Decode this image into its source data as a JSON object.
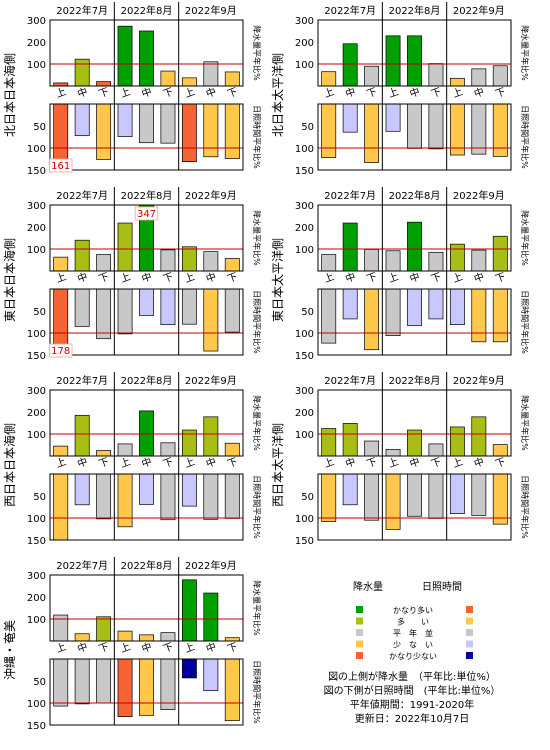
{
  "months": [
    "2022年7月",
    "2022年8月",
    "2022年9月"
  ],
  "dekads": [
    "上",
    "中",
    "下"
  ],
  "precip_side_label": "降水量平年比%",
  "sun_side_label": "日照時間平年比%",
  "precip_ticks": [
    "100",
    "200",
    "300"
  ],
  "sun_ticks": [
    "50",
    "100",
    "150"
  ],
  "colors": {
    "very_high": "#00A000",
    "high": "#A8BE14",
    "normal": "#C8C8C8",
    "low": "#FFC84B",
    "very_low": "#F56432",
    "sun_low": "#C8C8FF",
    "sun_very_low": "#0000A0",
    "normal_line": "#C00000"
  },
  "legend": {
    "precip_title": "降水量",
    "sun_title": "日照時間",
    "levels": [
      "かなり多い",
      "多　　い",
      "平　年　並",
      "少　な　い",
      "かなり少ない"
    ]
  },
  "notes": {
    "line1": "図の上側が降水量　（平年比:単位%）",
    "line2": "図の下側が日照時間　(平年比:単位%）",
    "line3": "平年値期間：1991-2020年",
    "line4": "更新日：2022年10月7日"
  },
  "chart_data": [
    {
      "type": "bar",
      "region": "北日本日本海側",
      "categories": [
        "7月上",
        "7月中",
        "7月下",
        "8月上",
        "8月中",
        "8月下",
        "9月上",
        "9月中",
        "9月下"
      ],
      "precipitation": [
        14,
        122,
        20,
        272,
        250,
        68,
        37,
        110,
        64
      ],
      "precipitation_class": [
        "very_low",
        "high",
        "very_low",
        "very_high",
        "very_high",
        "low",
        "low",
        "normal",
        "low"
      ],
      "sunshine": [
        161,
        72,
        126,
        74,
        88,
        89,
        131,
        120,
        124
      ],
      "sunshine_class": [
        "very_low",
        "sun_low",
        "low",
        "sun_low",
        "normal",
        "normal",
        "very_low",
        "low",
        "low"
      ],
      "precip_ylim": [
        0,
        300
      ],
      "sun_ylim": [
        150,
        0
      ],
      "labels": {
        "sun_0": "161"
      }
    },
    {
      "type": "bar",
      "region": "北日本太平洋側",
      "categories": [
        "7月上",
        "7月中",
        "7月下",
        "8月上",
        "8月中",
        "8月下",
        "9月上",
        "9月中",
        "9月下"
      ],
      "precipitation": [
        65,
        192,
        90,
        228,
        228,
        102,
        35,
        78,
        92
      ],
      "precipitation_class": [
        "low",
        "very_high",
        "normal",
        "very_high",
        "very_high",
        "normal",
        "low",
        "normal",
        "normal"
      ],
      "sunshine": [
        122,
        64,
        133,
        62,
        101,
        102,
        116,
        114,
        119
      ],
      "sunshine_class": [
        "low",
        "sun_low",
        "low",
        "sun_low",
        "normal",
        "normal",
        "low",
        "normal",
        "low"
      ],
      "precip_ylim": [
        0,
        300
      ],
      "sun_ylim": [
        150,
        0
      ]
    },
    {
      "type": "bar",
      "region": "東日本日本海側",
      "categories": [
        "7月上",
        "7月中",
        "7月下",
        "8月上",
        "8月中",
        "8月下",
        "9月上",
        "9月中",
        "9月下"
      ],
      "precipitation": [
        63,
        140,
        75,
        218,
        347,
        96,
        110,
        88,
        57
      ],
      "precipitation_class": [
        "low",
        "high",
        "normal",
        "high",
        "very_high",
        "normal",
        "high",
        "normal",
        "low"
      ],
      "sunshine": [
        178,
        85,
        113,
        102,
        60,
        81,
        80,
        141,
        98
      ],
      "sunshine_class": [
        "very_low",
        "normal",
        "normal",
        "normal",
        "sun_low",
        "sun_low",
        "normal",
        "low",
        "normal"
      ],
      "precip_ylim": [
        0,
        300
      ],
      "sun_ylim": [
        150,
        0
      ],
      "labels": {
        "sun_0": "178",
        "precip_4": "347"
      }
    },
    {
      "type": "bar",
      "region": "東日本太平洋側",
      "categories": [
        "7月上",
        "7月中",
        "7月下",
        "8月上",
        "8月中",
        "8月下",
        "9月上",
        "9月中",
        "9月下"
      ],
      "precipitation": [
        75,
        218,
        98,
        92,
        222,
        85,
        122,
        95,
        158
      ],
      "precipitation_class": [
        "normal",
        "very_high",
        "normal",
        "normal",
        "very_high",
        "normal",
        "high",
        "normal",
        "high"
      ],
      "sunshine": [
        123,
        68,
        138,
        106,
        83,
        68,
        81,
        120,
        120
      ],
      "sunshine_class": [
        "normal",
        "sun_low",
        "low",
        "normal",
        "sun_low",
        "sun_low",
        "sun_low",
        "low",
        "low"
      ],
      "precip_ylim": [
        0,
        300
      ],
      "sun_ylim": [
        150,
        0
      ]
    },
    {
      "type": "bar",
      "region": "西日本日本海側",
      "categories": [
        "7月上",
        "7月中",
        "7月下",
        "8月上",
        "8月中",
        "8月下",
        "9月上",
        "9月中",
        "9月下"
      ],
      "precipitation": [
        45,
        185,
        25,
        55,
        205,
        60,
        118,
        178,
        58
      ],
      "precipitation_class": [
        "low",
        "high",
        "low",
        "normal",
        "very_high",
        "normal",
        "high",
        "high",
        "low"
      ],
      "sunshine": [
        153,
        70,
        102,
        120,
        69,
        104,
        73,
        103,
        101
      ],
      "sunshine_class": [
        "low",
        "sun_low",
        "normal",
        "low",
        "sun_low",
        "normal",
        "sun_low",
        "normal",
        "normal"
      ],
      "precip_ylim": [
        0,
        300
      ],
      "sun_ylim": [
        150,
        0
      ]
    },
    {
      "type": "bar",
      "region": "西日本太平洋側",
      "categories": [
        "7月上",
        "7月中",
        "7月下",
        "8月上",
        "8月中",
        "8月下",
        "9月上",
        "9月中",
        "9月下"
      ],
      "precipitation": [
        125,
        148,
        68,
        30,
        118,
        55,
        132,
        178,
        52
      ],
      "precipitation_class": [
        "high",
        "high",
        "normal",
        "normal",
        "high",
        "normal",
        "high",
        "high",
        "low"
      ],
      "sunshine": [
        108,
        70,
        105,
        126,
        96,
        101,
        90,
        94,
        114
      ],
      "sunshine_class": [
        "low",
        "sun_low",
        "normal",
        "low",
        "normal",
        "normal",
        "sun_low",
        "normal",
        "low"
      ],
      "precip_ylim": [
        0,
        300
      ],
      "sun_ylim": [
        150,
        0
      ]
    },
    {
      "type": "bar",
      "region": "沖縄・奄美",
      "categories": [
        "7月上",
        "7月中",
        "7月下",
        "8月上",
        "8月中",
        "8月下",
        "9月上",
        "9月中",
        "9月下"
      ],
      "precipitation": [
        118,
        33,
        110,
        45,
        28,
        38,
        278,
        218,
        15
      ],
      "precipitation_class": [
        "normal",
        "low",
        "high",
        "low",
        "low",
        "normal",
        "very_high",
        "very_high",
        "low"
      ],
      "sunshine": [
        107,
        102,
        100,
        131,
        128,
        115,
        43,
        72,
        140
      ],
      "sunshine_class": [
        "normal",
        "normal",
        "normal",
        "very_low",
        "low",
        "normal",
        "sun_very_low",
        "sun_low",
        "low"
      ],
      "precip_ylim": [
        0,
        300
      ],
      "sun_ylim": [
        150,
        0
      ]
    }
  ]
}
